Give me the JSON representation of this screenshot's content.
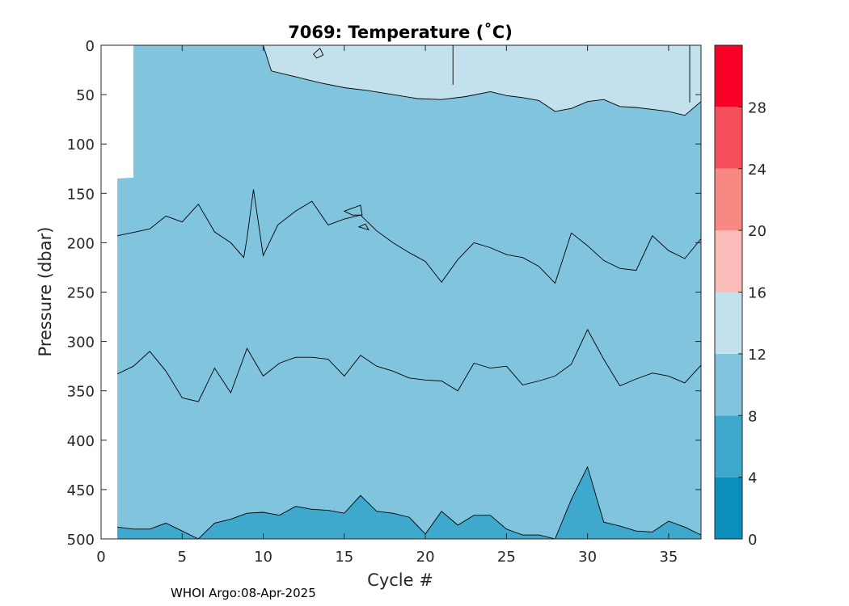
{
  "chart_data": {
    "type": "contour",
    "title": "7069:  Temperature (˚C)",
    "xlabel": "Cycle #",
    "ylabel": "Pressure (dbar)",
    "xlim": [
      0,
      37
    ],
    "ylim": [
      0,
      500
    ],
    "y_reversed": true,
    "xticks": [
      0,
      5,
      10,
      15,
      20,
      25,
      30,
      35
    ],
    "yticks": [
      0,
      50,
      100,
      150,
      200,
      250,
      300,
      350,
      400,
      450,
      500
    ],
    "data_extent": {
      "x_start": 1,
      "x_end": 37
    },
    "colorbar": {
      "range": [
        0,
        32
      ],
      "ticks": [
        0,
        4,
        8,
        12,
        16,
        20,
        24,
        28
      ],
      "levels": [
        {
          "from": 0,
          "to": 4,
          "color": "#0a8fbd"
        },
        {
          "from": 4,
          "to": 8,
          "color": "#3ea9cd"
        },
        {
          "from": 8,
          "to": 12,
          "color": "#80c4dd"
        },
        {
          "from": 12,
          "to": 16,
          "color": "#c3e1ec"
        },
        {
          "from": 16,
          "to": 20,
          "color": "#fbbdb9"
        },
        {
          "from": 20,
          "to": 24,
          "color": "#f88882"
        },
        {
          "from": 24,
          "to": 28,
          "color": "#f64e5b"
        },
        {
          "from": 28,
          "to": 32,
          "color": "#fa0228"
        }
      ]
    },
    "data_coverage": {
      "x": [
        1,
        1,
        2,
        2,
        37,
        37
      ],
      "top": [
        135,
        135,
        134,
        0,
        0,
        0
      ],
      "note": "no data (white) above the top boundary"
    },
    "contours": [
      {
        "level": 12,
        "description": "12 °C isotherm; region above is 12-16 °C",
        "x": [
          10,
          10.5,
          12,
          13.5,
          15,
          16.5,
          18,
          19.5,
          21,
          22.5,
          24,
          25,
          26,
          27,
          28,
          29,
          30,
          31,
          32,
          33,
          34,
          35,
          36,
          37
        ],
        "y": [
          0,
          26,
          32,
          38,
          43,
          46,
          50,
          54,
          55,
          52,
          47,
          51,
          53,
          56,
          67,
          64,
          57,
          55,
          62,
          63,
          65,
          67,
          71,
          57
        ]
      },
      {
        "level": 10,
        "description": "10 °C isotherm",
        "x": [
          1,
          3,
          4,
          5,
          6,
          7,
          8,
          8.8,
          9,
          9.4,
          10,
          10.9,
          12,
          13,
          14,
          15,
          16,
          17,
          18,
          19,
          20,
          21,
          22,
          23,
          24,
          25,
          26,
          27,
          28,
          29,
          30,
          31,
          32,
          33,
          34,
          35,
          36,
          37
        ],
        "y": [
          193,
          186,
          173,
          179,
          161,
          189,
          200,
          215,
          195,
          146,
          213,
          182,
          168,
          158,
          182,
          176,
          172,
          188,
          200,
          210,
          219,
          240,
          217,
          200,
          205,
          212,
          215,
          224,
          241,
          190,
          203,
          218,
          226,
          228,
          193,
          208,
          216,
          196
        ]
      },
      {
        "level": 9,
        "description": "9 °C isotherm",
        "x": [
          1,
          2,
          3,
          4,
          5,
          6,
          7,
          8,
          9,
          10,
          11,
          12,
          13,
          14,
          15,
          16,
          17,
          18,
          19,
          20,
          21,
          22,
          23,
          24,
          25,
          26,
          27,
          28,
          29,
          30,
          31,
          32,
          33,
          34,
          35,
          36,
          37
        ],
        "y": [
          333,
          325,
          310,
          330,
          357,
          361,
          327,
          352,
          307,
          335,
          322,
          316,
          316,
          318,
          335,
          314,
          325,
          330,
          337,
          339,
          340,
          350,
          322,
          327,
          325,
          344,
          340,
          335,
          323,
          288,
          318,
          345,
          338,
          332,
          335,
          342,
          324
        ]
      },
      {
        "level": 8,
        "description": "8 °C isotherm; region below is 4-8 °C",
        "x": [
          1,
          2,
          3,
          4,
          5,
          6,
          7,
          8,
          9,
          10,
          11,
          12,
          13,
          14,
          15,
          16,
          17,
          18,
          19,
          20,
          21,
          22,
          23,
          24,
          25,
          26,
          27,
          28,
          29,
          30,
          31,
          32,
          33,
          34,
          35,
          36,
          37
        ],
        "y": [
          488,
          490,
          490,
          484,
          492,
          500,
          484,
          480,
          474,
          473,
          476,
          467,
          470,
          471,
          474,
          456,
          472,
          474,
          478,
          495,
          472,
          486,
          476,
          476,
          490,
          496,
          496,
          500,
          460,
          427,
          483,
          487,
          492,
          493,
          482,
          488,
          496
        ]
      }
    ],
    "closed_contours": [
      {
        "level": 13,
        "x": [
          13.1,
          13.5,
          13.7,
          13.3,
          13.1
        ],
        "y": [
          9,
          3,
          10,
          13,
          9
        ]
      },
      {
        "level": 12,
        "x": [
          15,
          16,
          16.1,
          15.5,
          15
        ],
        "y": [
          168,
          162,
          172,
          172,
          168
        ]
      },
      {
        "level": 10,
        "x": [
          15.9,
          16.3,
          16.5,
          15.9
        ],
        "y": [
          184,
          181,
          187,
          184
        ]
      }
    ],
    "vertical_contour_segments": [
      {
        "level": 13,
        "x": [
          21.7,
          21.7
        ],
        "y": [
          0,
          40
        ]
      },
      {
        "level": 13,
        "x": [
          36.3,
          36.3
        ],
        "y": [
          0,
          58
        ]
      }
    ]
  },
  "footer_note": "WHOI Argo:08-Apr-2025"
}
